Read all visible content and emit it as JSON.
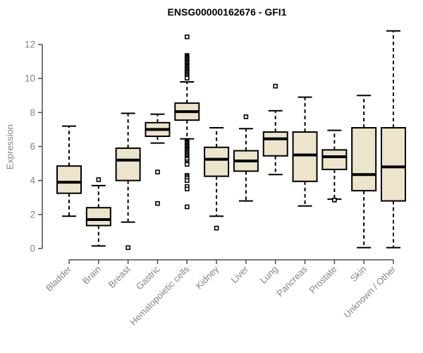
{
  "page": {
    "background": "#ffffff"
  },
  "chart_data": {
    "type": "boxplot",
    "title": "ENSG00000162676 - GFI1",
    "ylabel": "Expression",
    "xlabel": "",
    "ylim": [
      0,
      12
    ],
    "yticks": [
      0,
      2,
      4,
      6,
      8,
      10,
      12
    ],
    "grid": false,
    "legend": null,
    "colors": {
      "box_fill": "#ece5cb",
      "box_stroke": "#000000",
      "median": "#000000",
      "whisker": "#000000",
      "outlier_stroke": "#000000",
      "outlier_fill": "#ffffff",
      "axis": "#4d4d4d",
      "tick_label": "#848484",
      "title": "#000000",
      "background": "#ffffff"
    },
    "categories": [
      "Bladder",
      "Brain",
      "Breast",
      "Gastric",
      "Hematopoietic cells",
      "Kidney",
      "Liver",
      "Lung",
      "Pancreas",
      "Prostate",
      "Skin",
      "Unknown / Other"
    ],
    "boxes": [
      {
        "category": "Bladder",
        "low": 1.9,
        "q1": 3.25,
        "median": 3.9,
        "q3": 4.85,
        "high": 7.2,
        "outliers": []
      },
      {
        "category": "Brain",
        "low": 0.15,
        "q1": 1.35,
        "median": 1.7,
        "q3": 2.4,
        "high": 3.7,
        "outliers": [
          4.05
        ]
      },
      {
        "category": "Breast",
        "low": 1.55,
        "q1": 4.0,
        "median": 5.2,
        "q3": 5.9,
        "high": 7.95,
        "outliers": [
          0.05
        ]
      },
      {
        "category": "Gastric",
        "low": 6.2,
        "q1": 6.6,
        "median": 7.0,
        "q3": 7.4,
        "high": 7.9,
        "outliers": [
          4.5,
          2.65
        ]
      },
      {
        "category": "Hematopoietic cells",
        "low": 6.45,
        "q1": 7.55,
        "median": 8.05,
        "q3": 8.55,
        "high": 9.8,
        "outliers": [
          12.45,
          11.35,
          11.28,
          11.22,
          11.15,
          11.08,
          11.0,
          10.94,
          10.88,
          10.8,
          10.74,
          10.68,
          10.6,
          10.54,
          10.48,
          10.4,
          10.34,
          10.26,
          10.18,
          10.1,
          10.02,
          6.3,
          6.24,
          6.18,
          6.1,
          6.04,
          5.98,
          5.9,
          5.84,
          5.78,
          5.7,
          5.64,
          5.56,
          5.48,
          5.4,
          5.32,
          5.25,
          5.1,
          5.0,
          4.95,
          4.3,
          4.22,
          4.14,
          4.0,
          3.65,
          3.5,
          2.45
        ]
      },
      {
        "category": "Kidney",
        "low": 1.9,
        "q1": 4.25,
        "median": 5.25,
        "q3": 5.95,
        "high": 7.1,
        "outliers": [
          1.2
        ]
      },
      {
        "category": "Liver",
        "low": 2.8,
        "q1": 4.55,
        "median": 5.15,
        "q3": 5.75,
        "high": 7.05,
        "outliers": [
          7.75
        ]
      },
      {
        "category": "Lung",
        "low": 4.35,
        "q1": 5.45,
        "median": 6.45,
        "q3": 6.85,
        "high": 8.1,
        "outliers": [
          9.55
        ]
      },
      {
        "category": "Pancreas",
        "low": 2.5,
        "q1": 3.95,
        "median": 5.5,
        "q3": 6.85,
        "high": 8.9,
        "outliers": []
      },
      {
        "category": "Prostate",
        "low": 2.9,
        "q1": 4.65,
        "median": 5.4,
        "q3": 5.8,
        "high": 6.95,
        "outliers": [
          2.85
        ]
      },
      {
        "category": "Skin",
        "low": 0.05,
        "q1": 3.4,
        "median": 4.35,
        "q3": 7.1,
        "high": 9.0,
        "outliers": []
      },
      {
        "category": "Unknown / Other",
        "low": 0.05,
        "q1": 2.8,
        "median": 4.8,
        "q3": 7.1,
        "high": 12.8,
        "outliers": []
      }
    ]
  }
}
